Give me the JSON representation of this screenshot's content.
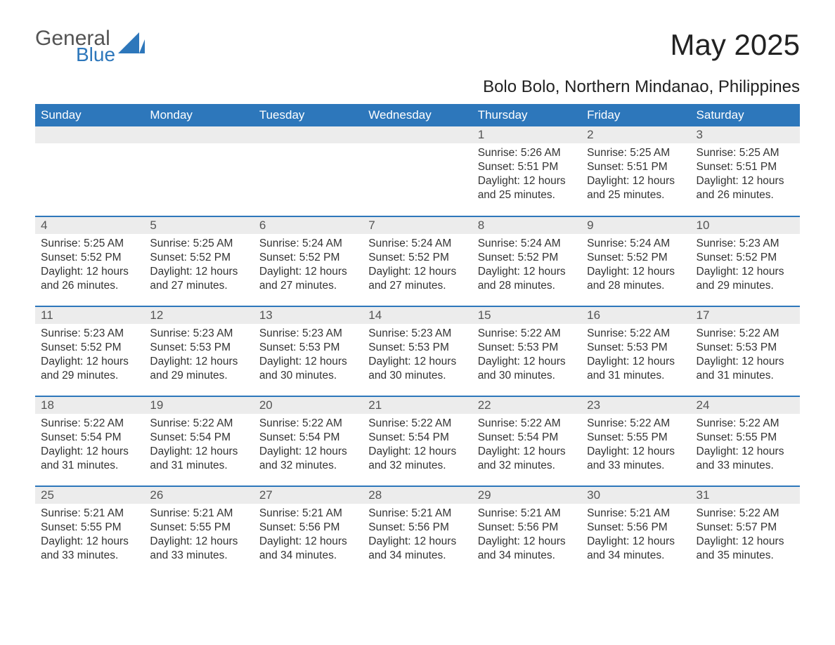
{
  "brand": {
    "word1": "General",
    "word2": "Blue",
    "accent_color": "#2d77bb",
    "text_color": "#545454"
  },
  "title": "May 2025",
  "subtitle": "Bolo Bolo, Northern Mindanao, Philippines",
  "colors": {
    "header_bg": "#2d77bb",
    "header_text": "#ffffff",
    "daynum_bg": "#ececec",
    "row_border": "#2d77bb",
    "body_text": "#333333"
  },
  "day_headers": [
    "Sunday",
    "Monday",
    "Tuesday",
    "Wednesday",
    "Thursday",
    "Friday",
    "Saturday"
  ],
  "weeks": [
    [
      null,
      null,
      null,
      null,
      {
        "n": "1",
        "sunrise": "5:26 AM",
        "sunset": "5:51 PM",
        "daylight": "12 hours and 25 minutes."
      },
      {
        "n": "2",
        "sunrise": "5:25 AM",
        "sunset": "5:51 PM",
        "daylight": "12 hours and 25 minutes."
      },
      {
        "n": "3",
        "sunrise": "5:25 AM",
        "sunset": "5:51 PM",
        "daylight": "12 hours and 26 minutes."
      }
    ],
    [
      {
        "n": "4",
        "sunrise": "5:25 AM",
        "sunset": "5:52 PM",
        "daylight": "12 hours and 26 minutes."
      },
      {
        "n": "5",
        "sunrise": "5:25 AM",
        "sunset": "5:52 PM",
        "daylight": "12 hours and 27 minutes."
      },
      {
        "n": "6",
        "sunrise": "5:24 AM",
        "sunset": "5:52 PM",
        "daylight": "12 hours and 27 minutes."
      },
      {
        "n": "7",
        "sunrise": "5:24 AM",
        "sunset": "5:52 PM",
        "daylight": "12 hours and 27 minutes."
      },
      {
        "n": "8",
        "sunrise": "5:24 AM",
        "sunset": "5:52 PM",
        "daylight": "12 hours and 28 minutes."
      },
      {
        "n": "9",
        "sunrise": "5:24 AM",
        "sunset": "5:52 PM",
        "daylight": "12 hours and 28 minutes."
      },
      {
        "n": "10",
        "sunrise": "5:23 AM",
        "sunset": "5:52 PM",
        "daylight": "12 hours and 29 minutes."
      }
    ],
    [
      {
        "n": "11",
        "sunrise": "5:23 AM",
        "sunset": "5:52 PM",
        "daylight": "12 hours and 29 minutes."
      },
      {
        "n": "12",
        "sunrise": "5:23 AM",
        "sunset": "5:53 PM",
        "daylight": "12 hours and 29 minutes."
      },
      {
        "n": "13",
        "sunrise": "5:23 AM",
        "sunset": "5:53 PM",
        "daylight": "12 hours and 30 minutes."
      },
      {
        "n": "14",
        "sunrise": "5:23 AM",
        "sunset": "5:53 PM",
        "daylight": "12 hours and 30 minutes."
      },
      {
        "n": "15",
        "sunrise": "5:22 AM",
        "sunset": "5:53 PM",
        "daylight": "12 hours and 30 minutes."
      },
      {
        "n": "16",
        "sunrise": "5:22 AM",
        "sunset": "5:53 PM",
        "daylight": "12 hours and 31 minutes."
      },
      {
        "n": "17",
        "sunrise": "5:22 AM",
        "sunset": "5:53 PM",
        "daylight": "12 hours and 31 minutes."
      }
    ],
    [
      {
        "n": "18",
        "sunrise": "5:22 AM",
        "sunset": "5:54 PM",
        "daylight": "12 hours and 31 minutes."
      },
      {
        "n": "19",
        "sunrise": "5:22 AM",
        "sunset": "5:54 PM",
        "daylight": "12 hours and 31 minutes."
      },
      {
        "n": "20",
        "sunrise": "5:22 AM",
        "sunset": "5:54 PM",
        "daylight": "12 hours and 32 minutes."
      },
      {
        "n": "21",
        "sunrise": "5:22 AM",
        "sunset": "5:54 PM",
        "daylight": "12 hours and 32 minutes."
      },
      {
        "n": "22",
        "sunrise": "5:22 AM",
        "sunset": "5:54 PM",
        "daylight": "12 hours and 32 minutes."
      },
      {
        "n": "23",
        "sunrise": "5:22 AM",
        "sunset": "5:55 PM",
        "daylight": "12 hours and 33 minutes."
      },
      {
        "n": "24",
        "sunrise": "5:22 AM",
        "sunset": "5:55 PM",
        "daylight": "12 hours and 33 minutes."
      }
    ],
    [
      {
        "n": "25",
        "sunrise": "5:21 AM",
        "sunset": "5:55 PM",
        "daylight": "12 hours and 33 minutes."
      },
      {
        "n": "26",
        "sunrise": "5:21 AM",
        "sunset": "5:55 PM",
        "daylight": "12 hours and 33 minutes."
      },
      {
        "n": "27",
        "sunrise": "5:21 AM",
        "sunset": "5:56 PM",
        "daylight": "12 hours and 34 minutes."
      },
      {
        "n": "28",
        "sunrise": "5:21 AM",
        "sunset": "5:56 PM",
        "daylight": "12 hours and 34 minutes."
      },
      {
        "n": "29",
        "sunrise": "5:21 AM",
        "sunset": "5:56 PM",
        "daylight": "12 hours and 34 minutes."
      },
      {
        "n": "30",
        "sunrise": "5:21 AM",
        "sunset": "5:56 PM",
        "daylight": "12 hours and 34 minutes."
      },
      {
        "n": "31",
        "sunrise": "5:22 AM",
        "sunset": "5:57 PM",
        "daylight": "12 hours and 35 minutes."
      }
    ]
  ],
  "labels": {
    "sunrise": "Sunrise: ",
    "sunset": "Sunset: ",
    "daylight": "Daylight: "
  }
}
